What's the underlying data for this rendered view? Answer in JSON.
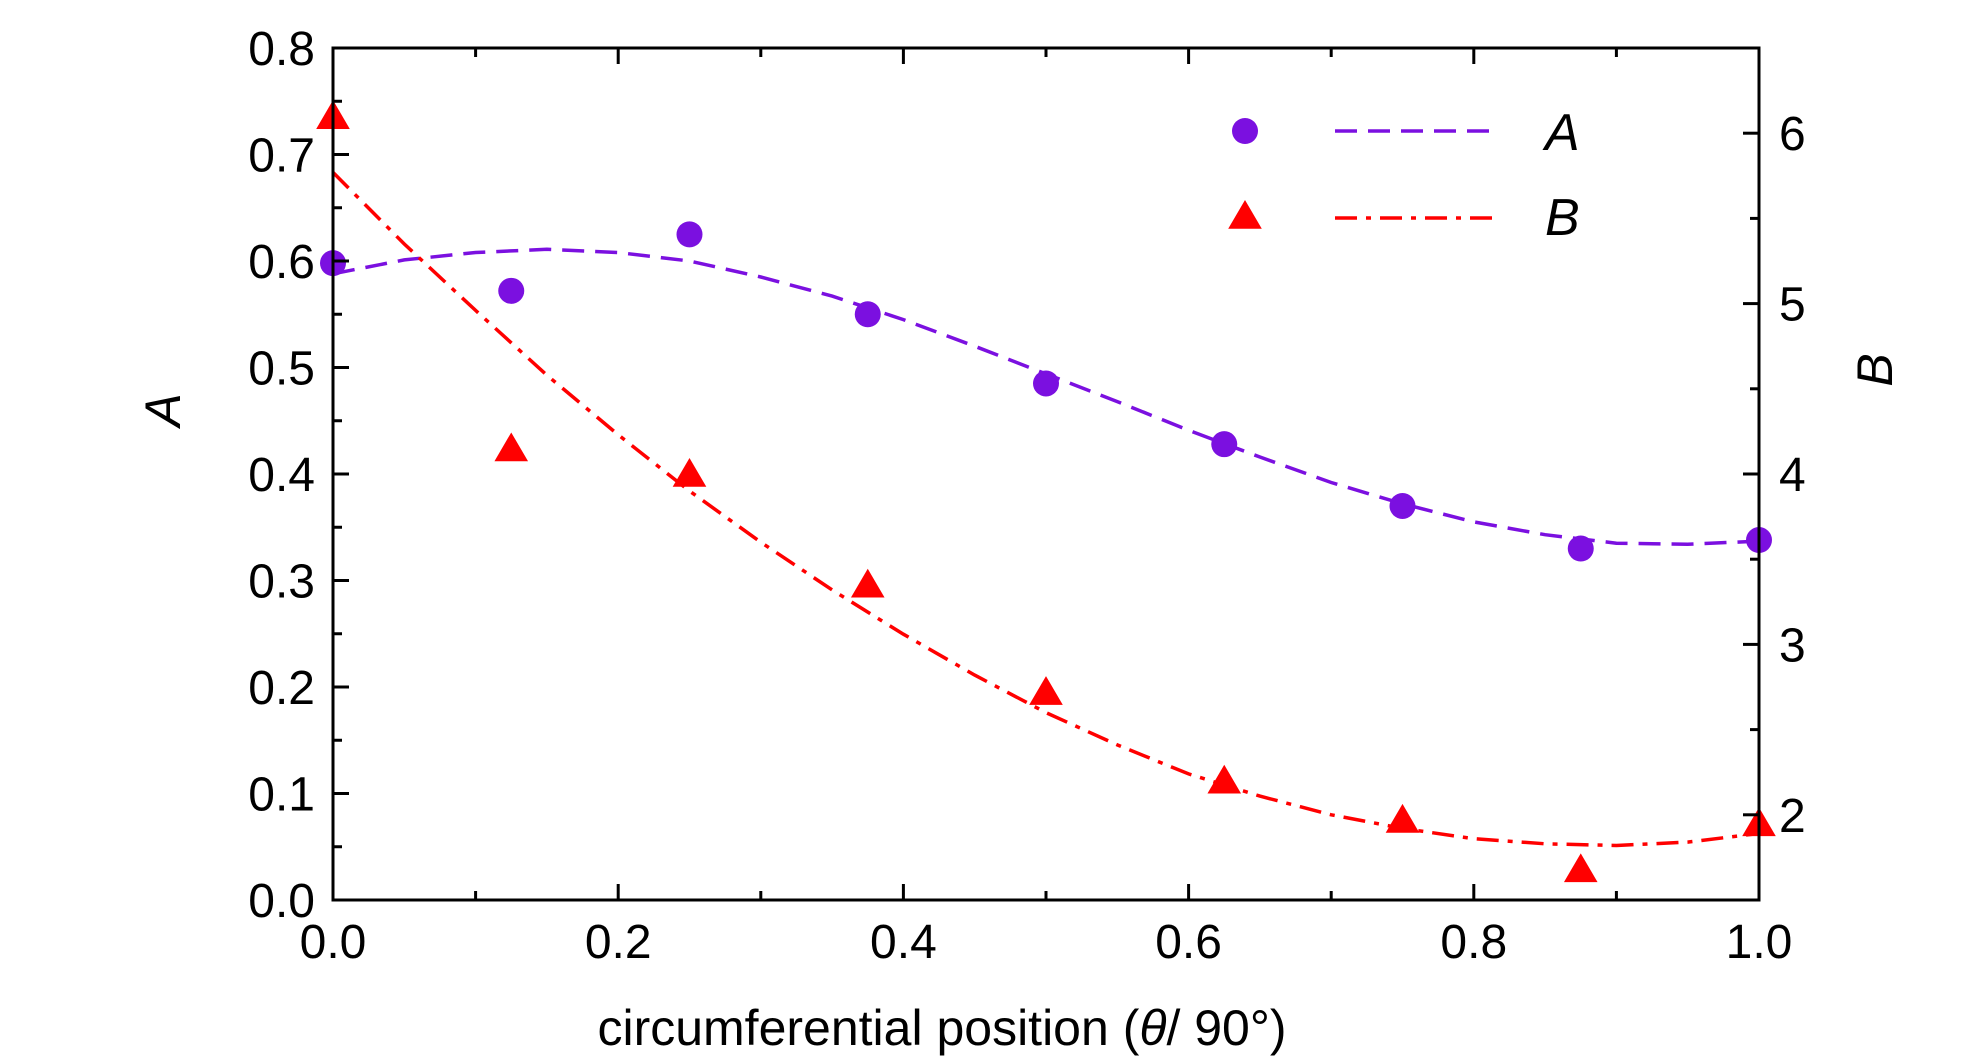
{
  "chart_data": {
    "type": "scatter",
    "xlabel": {
      "prefix": "circumferential position (",
      "symbol": "θ",
      "suffix": "/ 90°)"
    },
    "ylabel_left": "A",
    "ylabel_right": "B",
    "xlim": [
      0,
      1
    ],
    "ylim_left": [
      0,
      0.8
    ],
    "ylim_right": [
      1.5,
      6.5
    ],
    "x_ticks": [
      "0.0",
      "0.2",
      "0.4",
      "0.6",
      "0.8",
      "1.0"
    ],
    "y_left_ticks": [
      "0.0",
      "0.1",
      "0.2",
      "0.3",
      "0.4",
      "0.5",
      "0.6",
      "0.7",
      "0.8"
    ],
    "y_right_ticks": [
      "2",
      "3",
      "4",
      "5",
      "6"
    ],
    "grid": false,
    "legend_position": "top-right",
    "series": [
      {
        "name": "A",
        "axis": "left",
        "marker": "circle",
        "color": "#7b10e0",
        "fit_style": "dashed",
        "points": [
          {
            "x": 0.0,
            "y": 0.598
          },
          {
            "x": 0.125,
            "y": 0.572
          },
          {
            "x": 0.25,
            "y": 0.625
          },
          {
            "x": 0.375,
            "y": 0.55
          },
          {
            "x": 0.5,
            "y": 0.485
          },
          {
            "x": 0.625,
            "y": 0.428
          },
          {
            "x": 0.75,
            "y": 0.37
          },
          {
            "x": 0.875,
            "y": 0.33
          },
          {
            "x": 1.0,
            "y": 0.338
          }
        ],
        "fit": [
          {
            "x": 0.0,
            "y": 0.588
          },
          {
            "x": 0.05,
            "y": 0.601
          },
          {
            "x": 0.1,
            "y": 0.608
          },
          {
            "x": 0.15,
            "y": 0.611
          },
          {
            "x": 0.2,
            "y": 0.608
          },
          {
            "x": 0.25,
            "y": 0.6
          },
          {
            "x": 0.3,
            "y": 0.585
          },
          {
            "x": 0.35,
            "y": 0.567
          },
          {
            "x": 0.4,
            "y": 0.545
          },
          {
            "x": 0.45,
            "y": 0.52
          },
          {
            "x": 0.5,
            "y": 0.494
          },
          {
            "x": 0.55,
            "y": 0.468
          },
          {
            "x": 0.6,
            "y": 0.441
          },
          {
            "x": 0.65,
            "y": 0.416
          },
          {
            "x": 0.7,
            "y": 0.392
          },
          {
            "x": 0.75,
            "y": 0.372
          },
          {
            "x": 0.8,
            "y": 0.355
          },
          {
            "x": 0.85,
            "y": 0.343
          },
          {
            "x": 0.9,
            "y": 0.335
          },
          {
            "x": 0.95,
            "y": 0.334
          },
          {
            "x": 1.0,
            "y": 0.337
          }
        ]
      },
      {
        "name": "B",
        "axis": "right",
        "marker": "triangle",
        "color": "#ff0000",
        "fit_style": "dash-dot",
        "points": [
          {
            "x": 0.0,
            "y": 6.1
          },
          {
            "x": 0.125,
            "y": 4.15
          },
          {
            "x": 0.25,
            "y": 4.0
          },
          {
            "x": 0.375,
            "y": 3.35
          },
          {
            "x": 0.5,
            "y": 2.72
          },
          {
            "x": 0.625,
            "y": 2.2
          },
          {
            "x": 0.75,
            "y": 1.97
          },
          {
            "x": 0.875,
            "y": 1.68
          },
          {
            "x": 1.0,
            "y": 1.95
          }
        ],
        "fit": [
          {
            "x": 0.0,
            "y": 5.77
          },
          {
            "x": 0.05,
            "y": 5.35
          },
          {
            "x": 0.1,
            "y": 4.96
          },
          {
            "x": 0.15,
            "y": 4.58
          },
          {
            "x": 0.2,
            "y": 4.23
          },
          {
            "x": 0.25,
            "y": 3.9
          },
          {
            "x": 0.3,
            "y": 3.6
          },
          {
            "x": 0.35,
            "y": 3.32
          },
          {
            "x": 0.4,
            "y": 3.06
          },
          {
            "x": 0.45,
            "y": 2.82
          },
          {
            "x": 0.5,
            "y": 2.6
          },
          {
            "x": 0.55,
            "y": 2.41
          },
          {
            "x": 0.6,
            "y": 2.24
          },
          {
            "x": 0.65,
            "y": 2.11
          },
          {
            "x": 0.7,
            "y": 2.0
          },
          {
            "x": 0.75,
            "y": 1.92
          },
          {
            "x": 0.8,
            "y": 1.86
          },
          {
            "x": 0.85,
            "y": 1.83
          },
          {
            "x": 0.9,
            "y": 1.82
          },
          {
            "x": 0.95,
            "y": 1.84
          },
          {
            "x": 1.0,
            "y": 1.89
          }
        ]
      }
    ]
  }
}
